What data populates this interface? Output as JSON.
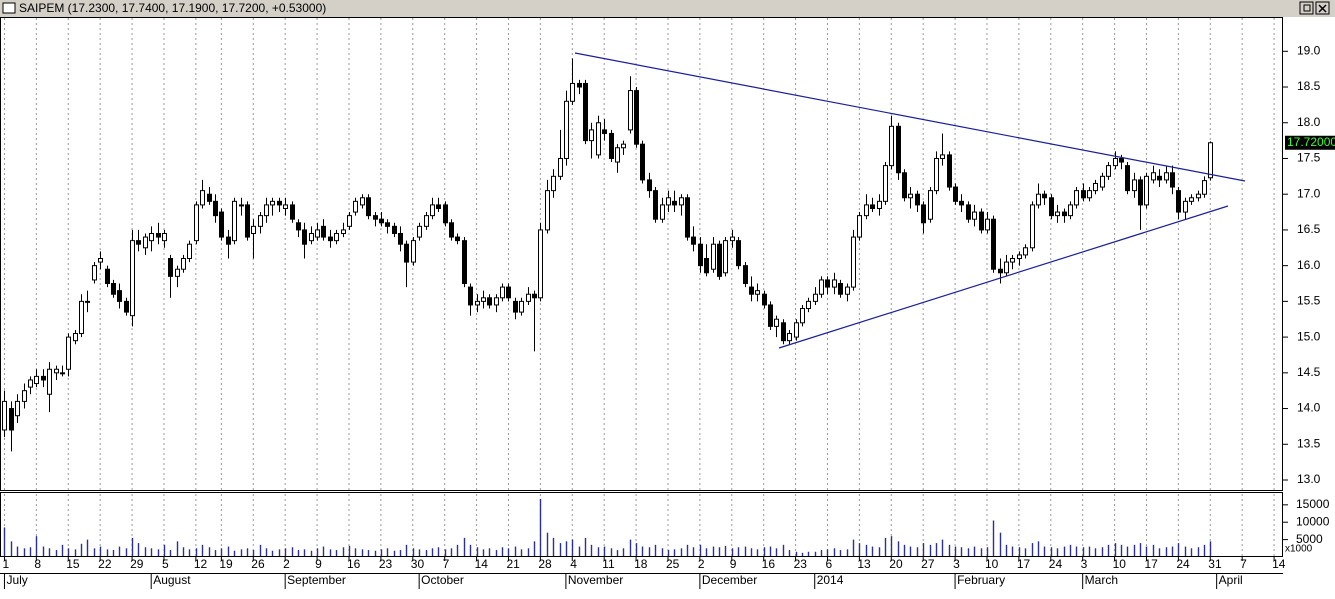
{
  "chart_data": {
    "type": "candlestick",
    "title": "SAIPEM (17.2300, 17.7400, 17.1900, 17.7200, +0.53000)",
    "last_label": "17.72000",
    "up_color": "#ffffff",
    "down_color": "#000000",
    "xlim": [
      -0.7,
      200.4
    ],
    "ylim": [
      12.86,
      19.48
    ],
    "yticks": [
      {
        "value": 13,
        "label": "13.0"
      },
      {
        "value": 13.5,
        "label": "13.5"
      },
      {
        "value": 14,
        "label": "14.0"
      },
      {
        "value": 14.5,
        "label": "14.5"
      },
      {
        "value": 15,
        "label": "15.0"
      },
      {
        "value": 15.5,
        "label": "15.5"
      },
      {
        "value": 16,
        "label": "16.0"
      },
      {
        "value": 16.5,
        "label": "16.5"
      },
      {
        "value": 17,
        "label": "17.0"
      },
      {
        "value": 17.5,
        "label": "17.5"
      },
      {
        "value": 18,
        "label": "18.0"
      },
      {
        "value": 18.5,
        "label": "18.5"
      },
      {
        "value": 19,
        "label": "19.0"
      }
    ],
    "grid": "x",
    "day_ticks": [
      {
        "value": 0,
        "label": "1"
      },
      {
        "value": 5,
        "label": "8"
      },
      {
        "value": 10,
        "label": "15"
      },
      {
        "value": 15,
        "label": "22"
      },
      {
        "value": 20,
        "label": "29"
      },
      {
        "value": 25,
        "label": "5"
      },
      {
        "value": 30,
        "label": "12"
      },
      {
        "value": 34,
        "label": "19"
      },
      {
        "value": 39,
        "label": "26"
      },
      {
        "value": 44,
        "label": "2"
      },
      {
        "value": 49,
        "label": "9"
      },
      {
        "value": 54,
        "label": "16"
      },
      {
        "value": 59,
        "label": "23"
      },
      {
        "value": 64,
        "label": "30"
      },
      {
        "value": 69,
        "label": "7"
      },
      {
        "value": 74,
        "label": "14"
      },
      {
        "value": 79,
        "label": "21"
      },
      {
        "value": 84,
        "label": "28"
      },
      {
        "value": 89,
        "label": "4"
      },
      {
        "value": 94,
        "label": "11"
      },
      {
        "value": 99,
        "label": "18"
      },
      {
        "value": 104,
        "label": "25"
      },
      {
        "value": 109,
        "label": "2"
      },
      {
        "value": 114,
        "label": "9"
      },
      {
        "value": 119,
        "label": "16"
      },
      {
        "value": 124,
        "label": "23"
      },
      {
        "value": 129,
        "label": "6"
      },
      {
        "value": 134,
        "label": "13"
      },
      {
        "value": 139,
        "label": "20"
      },
      {
        "value": 144,
        "label": "27"
      },
      {
        "value": 149,
        "label": "3"
      },
      {
        "value": 154,
        "label": "10"
      },
      {
        "value": 159,
        "label": "17"
      },
      {
        "value": 164,
        "label": "24"
      },
      {
        "value": 169,
        "label": "3"
      },
      {
        "value": 174,
        "label": "10"
      },
      {
        "value": 179,
        "label": "17"
      },
      {
        "value": 184,
        "label": "24"
      },
      {
        "value": 189,
        "label": "31"
      },
      {
        "value": 194,
        "label": "7"
      },
      {
        "value": 199,
        "label": "14"
      }
    ],
    "month_ticks": [
      {
        "value": 0,
        "label": "July"
      },
      {
        "value": 23,
        "label": "August"
      },
      {
        "value": 44,
        "label": "September"
      },
      {
        "value": 65,
        "label": "October"
      },
      {
        "value": 88,
        "label": "November"
      },
      {
        "value": 109,
        "label": "December"
      },
      {
        "value": 127,
        "label": "2014"
      },
      {
        "value": 149,
        "label": "February"
      },
      {
        "value": 169,
        "label": "March"
      },
      {
        "value": 190,
        "label": "April"
      }
    ],
    "open": [
      13.7,
      14.0,
      13.9,
      14.1,
      14.3,
      14.35,
      14.45,
      14.2,
      14.5,
      14.5,
      14.55,
      14.95,
      15.05,
      15.5,
      15.8,
      16.05,
      15.95,
      15.75,
      15.65,
      15.5,
      15.3,
      16.35,
      16.25,
      16.35,
      16.45,
      16.35,
      16.1,
      15.85,
      15.95,
      16.1,
      16.35,
      16.85,
      17.0,
      16.9,
      16.75,
      16.4,
      16.35,
      16.85,
      16.85,
      16.45,
      16.55,
      16.7,
      16.85,
      16.9,
      16.8,
      16.85,
      16.6,
      16.5,
      16.35,
      16.4,
      16.55,
      16.4,
      16.35,
      16.45,
      16.55,
      16.75,
      16.85,
      16.95,
      16.7,
      16.65,
      16.6,
      16.55,
      16.45,
      16.3,
      16.05,
      16.4,
      16.55,
      16.7,
      16.85,
      16.85,
      16.6,
      16.4,
      16.35,
      15.7,
      15.45,
      15.5,
      15.55,
      15.45,
      15.55,
      15.7,
      15.5,
      15.35,
      15.5,
      15.6,
      15.55,
      16.5,
      17.05,
      17.25,
      17.5,
      18.3,
      18.55,
      18.55,
      17.75,
      17.55,
      17.9,
      17.85,
      17.45,
      17.65,
      17.9,
      18.45,
      17.7,
      17.2,
      17.05,
      16.65,
      16.85,
      16.9,
      16.85,
      16.95,
      16.4,
      16.3,
      16.1,
      15.95,
      16.3,
      15.9,
      16.35,
      16.35,
      16.0,
      15.7,
      15.6,
      15.6,
      15.45,
      15.15,
      15.2,
      14.95,
      15.0,
      15.2,
      15.4,
      15.5,
      15.6,
      15.8,
      15.7,
      15.75,
      15.6,
      15.7,
      16.4,
      16.7,
      16.85,
      16.8,
      16.9,
      17.4,
      17.95,
      17.3,
      16.95,
      17.0,
      16.85,
      16.65,
      17.05,
      17.5,
      17.55,
      17.1,
      16.9,
      16.85,
      16.65,
      16.75,
      16.5,
      16.65,
      15.95,
      15.9,
      16.05,
      16.1,
      16.15,
      16.25,
      16.85,
      17.0,
      16.95,
      16.7,
      16.75,
      16.7,
      16.85,
      17.05,
      16.95,
      17.05,
      17.1,
      17.25,
      17.4,
      17.5,
      17.4,
      17.05,
      17.2,
      16.85,
      17.2,
      17.25,
      17.2,
      17.3,
      17.05,
      16.75,
      16.9,
      16.95,
      17.0,
      17.23
    ],
    "high": [
      14.25,
      14.1,
      14.2,
      14.35,
      14.45,
      14.55,
      14.55,
      14.65,
      14.6,
      14.6,
      15.05,
      15.1,
      15.6,
      15.65,
      16.05,
      16.2,
      16.0,
      15.8,
      15.75,
      15.55,
      16.5,
      16.5,
      16.45,
      16.55,
      16.6,
      16.5,
      16.15,
      16.0,
      16.15,
      16.35,
      16.9,
      17.2,
      17.1,
      17.0,
      16.8,
      16.5,
      16.95,
      16.95,
      16.9,
      16.65,
      16.75,
      16.95,
      16.95,
      16.95,
      16.95,
      16.9,
      16.65,
      16.6,
      16.55,
      16.6,
      16.65,
      16.5,
      16.5,
      16.6,
      16.75,
      16.95,
      17.0,
      17.0,
      16.75,
      16.75,
      16.65,
      16.6,
      16.55,
      16.35,
      16.4,
      16.6,
      16.75,
      16.95,
      16.95,
      16.9,
      16.65,
      16.45,
      16.4,
      15.75,
      15.6,
      15.65,
      15.6,
      15.6,
      15.75,
      15.75,
      15.55,
      15.55,
      15.7,
      15.65,
      16.6,
      17.2,
      17.35,
      17.9,
      18.45,
      18.9,
      18.6,
      18.6,
      18.0,
      18.1,
      18.05,
      17.9,
      17.7,
      17.75,
      18.65,
      18.5,
      17.75,
      17.3,
      17.1,
      16.95,
      17.05,
      17.05,
      17.0,
      17.0,
      16.55,
      16.4,
      16.3,
      16.4,
      16.35,
      16.4,
      16.5,
      16.4,
      16.05,
      15.85,
      15.75,
      15.65,
      15.5,
      15.3,
      15.25,
      15.1,
      15.25,
      15.45,
      15.55,
      15.7,
      15.85,
      15.85,
      15.9,
      15.8,
      15.75,
      16.5,
      16.75,
      17.0,
      16.95,
      17.0,
      17.45,
      18.1,
      18.0,
      17.35,
      17.1,
      17.05,
      16.9,
      17.1,
      17.6,
      17.85,
      17.6,
      17.15,
      17.0,
      16.9,
      16.85,
      16.8,
      16.75,
      16.7,
      16.1,
      16.15,
      16.15,
      16.2,
      16.3,
      16.9,
      17.15,
      17.05,
      17.0,
      16.85,
      16.8,
      16.9,
      17.1,
      17.15,
      17.1,
      17.2,
      17.3,
      17.45,
      17.6,
      17.55,
      17.45,
      17.3,
      17.25,
      17.3,
      17.4,
      17.35,
      17.4,
      17.4,
      17.1,
      16.95,
      17.0,
      17.05,
      17.25,
      17.74
    ],
    "low": [
      13.6,
      13.4,
      13.8,
      14.0,
      14.2,
      14.3,
      14.3,
      13.95,
      14.4,
      14.45,
      14.45,
      14.9,
      15.0,
      15.35,
      15.75,
      15.95,
      15.7,
      15.55,
      15.4,
      15.3,
      15.15,
      16.2,
      16.15,
      16.2,
      16.3,
      16.25,
      15.55,
      15.7,
      15.9,
      16.05,
      16.3,
      16.8,
      16.85,
      16.6,
      16.35,
      16.1,
      16.3,
      16.7,
      16.35,
      16.1,
      16.45,
      16.6,
      16.7,
      16.75,
      16.7,
      16.6,
      16.4,
      16.1,
      16.3,
      16.35,
      16.35,
      16.25,
      16.3,
      16.4,
      16.5,
      16.7,
      16.8,
      16.65,
      16.55,
      16.55,
      16.45,
      16.4,
      16.2,
      15.7,
      16.0,
      16.35,
      16.5,
      16.65,
      16.75,
      16.55,
      16.35,
      16.3,
      15.7,
      15.3,
      15.35,
      15.4,
      15.4,
      15.35,
      15.5,
      15.5,
      15.25,
      15.3,
      15.45,
      14.8,
      15.5,
      16.45,
      16.95,
      17.2,
      17.4,
      18.25,
      18.4,
      17.7,
      17.5,
      17.5,
      17.75,
      17.45,
      17.3,
      17.55,
      17.85,
      17.65,
      17.15,
      16.95,
      16.6,
      16.6,
      16.75,
      16.75,
      16.7,
      16.35,
      16.2,
      15.9,
      15.85,
      15.9,
      15.8,
      15.85,
      16.25,
      15.95,
      15.7,
      15.5,
      15.5,
      15.4,
      15.1,
      15.0,
      14.9,
      14.9,
      14.95,
      15.15,
      15.35,
      15.45,
      15.55,
      15.6,
      15.6,
      15.55,
      15.5,
      15.65,
      16.35,
      16.65,
      16.75,
      16.7,
      16.85,
      17.35,
      17.2,
      16.9,
      16.8,
      16.75,
      16.45,
      16.6,
      17.0,
      17.4,
      17.05,
      16.85,
      16.75,
      16.6,
      16.55,
      16.45,
      16.45,
      15.9,
      15.75,
      15.85,
      15.95,
      16.0,
      16.1,
      16.2,
      16.8,
      16.85,
      16.65,
      16.6,
      16.6,
      16.65,
      16.8,
      16.9,
      16.9,
      17.0,
      17.05,
      17.2,
      17.35,
      17.35,
      17.0,
      16.95,
      16.5,
      16.8,
      17.15,
      17.1,
      17.15,
      17.0,
      16.65,
      16.65,
      16.85,
      16.9,
      16.95,
      17.19
    ],
    "close": [
      14.1,
      13.7,
      14.1,
      14.25,
      14.4,
      14.45,
      14.4,
      14.55,
      14.55,
      14.5,
      15.0,
      15.05,
      15.5,
      15.5,
      16.0,
      16.1,
      15.75,
      15.6,
      15.5,
      15.35,
      16.35,
      16.3,
      16.4,
      16.45,
      16.4,
      16.45,
      15.85,
      15.95,
      16.1,
      16.3,
      16.85,
      17.05,
      16.9,
      16.7,
      16.4,
      16.3,
      16.9,
      16.85,
      16.4,
      16.55,
      16.7,
      16.85,
      16.9,
      16.85,
      16.85,
      16.65,
      16.5,
      16.3,
      16.45,
      16.5,
      16.4,
      16.35,
      16.45,
      16.5,
      16.7,
      16.9,
      16.95,
      16.7,
      16.65,
      16.6,
      16.55,
      16.45,
      16.3,
      16.05,
      16.35,
      16.55,
      16.7,
      16.85,
      16.8,
      16.6,
      16.4,
      16.35,
      15.75,
      15.45,
      15.5,
      15.55,
      15.45,
      15.55,
      15.7,
      15.55,
      15.35,
      15.5,
      15.6,
      15.55,
      16.5,
      17.05,
      17.25,
      17.5,
      18.3,
      18.55,
      18.5,
      17.75,
      17.9,
      18.0,
      17.85,
      17.5,
      17.65,
      17.7,
      18.45,
      17.7,
      17.2,
      17.05,
      16.65,
      16.85,
      16.95,
      16.85,
      16.95,
      16.4,
      16.3,
      16.0,
      15.9,
      16.3,
      15.85,
      16.35,
      16.4,
      16.0,
      15.75,
      15.6,
      15.65,
      15.45,
      15.15,
      15.25,
      14.95,
      15.05,
      15.2,
      15.4,
      15.5,
      15.6,
      15.8,
      15.7,
      15.8,
      15.6,
      15.7,
      16.4,
      16.7,
      16.85,
      16.8,
      16.9,
      17.4,
      17.95,
      17.3,
      16.95,
      17.0,
      16.85,
      16.6,
      17.05,
      17.5,
      17.55,
      17.1,
      16.9,
      16.85,
      16.65,
      16.75,
      16.5,
      16.65,
      15.95,
      15.9,
      16.05,
      16.1,
      16.15,
      16.25,
      16.85,
      17.0,
      16.95,
      16.7,
      16.75,
      16.7,
      16.85,
      17.05,
      16.95,
      17.05,
      17.15,
      17.25,
      17.4,
      17.5,
      17.45,
      17.05,
      17.2,
      16.85,
      17.25,
      17.3,
      17.2,
      17.3,
      17.1,
      16.75,
      16.9,
      16.95,
      17.0,
      17.19,
      17.72
    ],
    "volume": {
      "unit": "x1000",
      "color": "#2a2f9c",
      "ylim": [
        0,
        18400
      ],
      "yticks": [
        5000,
        10000,
        15000
      ],
      "values": [
        8500,
        4500,
        3000,
        2500,
        2800,
        6000,
        3000,
        2500,
        2000,
        3500,
        2500,
        2200,
        3800,
        5000,
        2500,
        3000,
        2200,
        2000,
        3000,
        2500,
        5500,
        4000,
        2800,
        2500,
        2200,
        3500,
        2000,
        4500,
        2800,
        2200,
        2500,
        3500,
        2800,
        2000,
        2500,
        3000,
        1800,
        2200,
        2500,
        2000,
        3500,
        2500,
        1800,
        2200,
        2500,
        2800,
        2000,
        2200,
        1800,
        2500,
        3000,
        2200,
        2000,
        2800,
        3200,
        2500,
        2200,
        2000,
        1800,
        2200,
        2500,
        1800,
        2000,
        3500,
        2500,
        2200,
        2000,
        2500,
        2800,
        2200,
        2500,
        3500,
        5500,
        3500,
        2800,
        2200,
        2500,
        2000,
        2800,
        2500,
        3000,
        2200,
        2500,
        4500,
        16700,
        7000,
        5500,
        4000,
        4500,
        5000,
        3000,
        5500,
        3500,
        2800,
        3000,
        2500,
        2000,
        2500,
        5000,
        4000,
        3000,
        2800,
        3500,
        2500,
        2000,
        2200,
        2500,
        3500,
        2800,
        3500,
        2500,
        3000,
        2800,
        3200,
        2500,
        2800,
        3000,
        2500,
        2200,
        2800,
        3000,
        2500,
        3500,
        2000,
        1500,
        1200,
        1500,
        1500,
        2000,
        2200,
        2500,
        2000,
        2200,
        5000,
        4000,
        3500,
        3000,
        2800,
        5500,
        6000,
        4500,
        3500,
        3000,
        2800,
        4000,
        3500,
        4000,
        5000,
        3500,
        3000,
        2800,
        2500,
        3000,
        2500,
        2800,
        10500,
        7000,
        3500,
        3000,
        2800,
        2500,
        4000,
        4500,
        3000,
        2800,
        2500,
        3000,
        3500,
        3000,
        2800,
        3000,
        2500,
        2800,
        3500,
        4000,
        3500,
        3000,
        3500,
        4000,
        3000,
        3500,
        2500,
        2800,
        3000,
        4000,
        3000,
        2500,
        2800,
        3500,
        4500
      ]
    }
  }
}
